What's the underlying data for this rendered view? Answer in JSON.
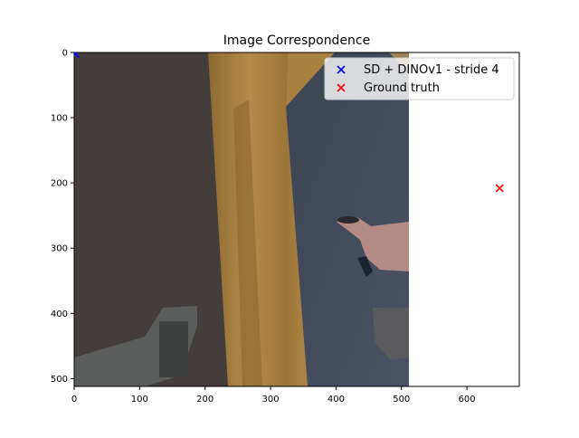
{
  "chart_data": {
    "type": "scatter",
    "title": "Image Correspondence",
    "xlabel": "",
    "ylabel": "",
    "xlim": [
      0,
      680
    ],
    "ylim": [
      512,
      0
    ],
    "x_ticks": [
      0,
      100,
      200,
      300,
      400,
      500,
      600
    ],
    "y_ticks": [
      0,
      100,
      200,
      300,
      400,
      500
    ],
    "grid": false,
    "legend_position": "top-right",
    "background_image": {
      "description": "first-person photo of a hand pointing toward a doorway with wooden door frame and blue-gray carpet",
      "extent_x": [
        0,
        512
      ],
      "extent_y": [
        0,
        512
      ]
    },
    "series": [
      {
        "name": "SD + DINOv1 - stride 4",
        "marker": "x",
        "color": "#0000ff",
        "points": [
          [
            2,
            2
          ]
        ]
      },
      {
        "name": "Ground truth",
        "marker": "x",
        "color": "#ff0000",
        "points": [
          [
            650,
            208
          ]
        ]
      }
    ]
  }
}
